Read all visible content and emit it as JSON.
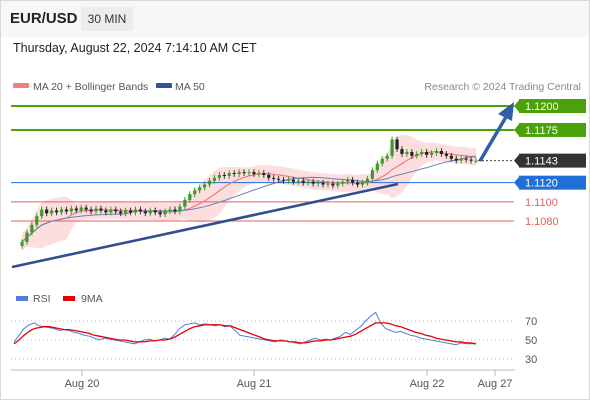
{
  "header": {
    "symbol": "EUR/USD",
    "timeframe": "30 MIN",
    "datetime": "Thursday, August 22, 2024 7:14:10 AM CET"
  },
  "legend": {
    "ma20_label": "MA 20 + Bollinger Bands",
    "ma50_label": "MA 50",
    "attribution": "Research © 2024 Trading Central",
    "colors": {
      "ma20": "#f08080",
      "ma50": "#2f5597"
    }
  },
  "chart_data": [
    {
      "type": "candlestick",
      "title": "",
      "x_ticks": [
        "Aug 20",
        "Aug 21",
        "Aug 22",
        "Aug 27"
      ],
      "ylim": [
        1.104,
        1.1225
      ],
      "price_levels": [
        {
          "label": "1.1200",
          "value": 1.12,
          "kind": "resistance",
          "color": "#4aa10a"
        },
        {
          "label": "1.1175",
          "value": 1.1175,
          "kind": "resistance",
          "color": "#4aa10a"
        },
        {
          "label": "1.1143",
          "value": 1.1143,
          "kind": "last",
          "color": "#333333"
        },
        {
          "label": "1.1120",
          "value": 1.112,
          "kind": "pivot",
          "color": "#1f6fd8"
        },
        {
          "label": "1.1100",
          "value": 1.11,
          "kind": "support",
          "color": "#e06060"
        },
        {
          "label": "1.1080",
          "value": 1.108,
          "kind": "support",
          "color": "#e06060"
        }
      ],
      "close": [
        1.1058,
        1.1068,
        1.1076,
        1.1085,
        1.1092,
        1.1088,
        1.1091,
        1.1089,
        1.1092,
        1.109,
        1.1093,
        1.1091,
        1.1094,
        1.1092,
        1.109,
        1.1093,
        1.1091,
        1.1089,
        1.1092,
        1.109,
        1.1088,
        1.1091,
        1.1089,
        1.1092,
        1.109,
        1.1088,
        1.1091,
        1.1089,
        1.1087,
        1.109,
        1.1092,
        1.109,
        1.1095,
        1.1102,
        1.1108,
        1.1112,
        1.1115,
        1.1118,
        1.1122,
        1.1125,
        1.1128,
        1.1127,
        1.113,
        1.1129,
        1.1131,
        1.113,
        1.1131,
        1.1129,
        1.113,
        1.1128,
        1.1125,
        1.1124,
        1.1123,
        1.1122,
        1.1123,
        1.1121,
        1.1122,
        1.112,
        1.1121,
        1.1119,
        1.112,
        1.1118,
        1.1119,
        1.1117,
        1.1119,
        1.1121,
        1.1123,
        1.112,
        1.1118,
        1.112,
        1.1124,
        1.1133,
        1.114,
        1.1145,
        1.1148,
        1.1165,
        1.1155,
        1.115,
        1.1152,
        1.1148,
        1.115,
        1.1152,
        1.1149,
        1.1151,
        1.1153,
        1.115,
        1.1148,
        1.1145,
        1.1143,
        1.1145,
        1.1144,
        1.1143,
        1.1143
      ]
    },
    {
      "type": "line",
      "title": "",
      "series": [
        {
          "name": "RSI",
          "color": "#4f7fd8",
          "values": [
            48,
            55,
            62,
            66,
            68,
            65,
            64,
            63,
            62,
            60,
            61,
            60,
            58,
            57,
            55,
            54,
            52,
            50,
            52,
            51,
            50,
            49,
            48,
            47,
            46,
            48,
            50,
            51,
            49,
            50,
            52,
            51,
            56,
            62,
            66,
            67,
            68,
            66,
            67,
            66,
            65,
            66,
            64,
            65,
            60,
            55,
            54,
            53,
            52,
            51,
            50,
            49,
            48,
            50,
            49,
            48,
            47,
            46,
            48,
            50,
            52,
            50,
            51,
            50,
            52,
            54,
            58,
            56,
            60,
            64,
            70,
            75,
            79,
            68,
            62,
            60,
            58,
            59,
            57,
            55,
            54,
            52,
            51,
            50,
            49,
            48,
            47,
            46,
            45,
            47,
            46,
            46,
            46
          ]
        },
        {
          "name": "9MA",
          "color": "#e60000",
          "values": [
            46,
            50,
            55,
            59,
            62,
            63,
            64,
            64,
            63,
            62,
            61,
            61,
            60,
            59,
            58,
            57,
            55,
            54,
            53,
            52,
            51,
            50,
            50,
            49,
            48,
            48,
            48,
            49,
            49,
            50,
            50,
            51,
            53,
            56,
            59,
            62,
            64,
            65,
            66,
            66,
            66,
            66,
            65,
            65,
            63,
            61,
            59,
            57,
            55,
            53,
            51,
            50,
            49,
            49,
            49,
            48,
            48,
            47,
            47,
            48,
            49,
            49,
            50,
            50,
            51,
            52,
            53,
            54,
            56,
            59,
            62,
            65,
            68,
            68,
            68,
            67,
            65,
            64,
            62,
            60,
            58,
            57,
            55,
            54,
            52,
            51,
            50,
            49,
            48,
            48,
            47,
            47,
            46
          ]
        }
      ],
      "y_ticks": [
        "70",
        "50",
        "30"
      ],
      "ylim": [
        20,
        85
      ]
    }
  ]
}
